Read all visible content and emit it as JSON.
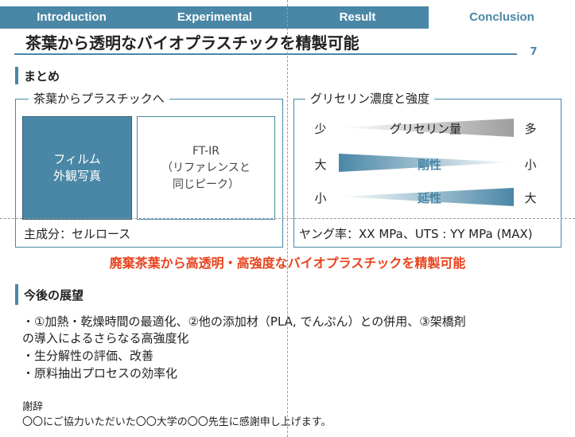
{
  "tabs": [
    "Introduction",
    "Experimental",
    "Result",
    "Conclusion"
  ],
  "slide": {
    "title": "茶葉から透明なバイオプラスチックを精製可能",
    "page_number": "7"
  },
  "summary": {
    "heading": "まとめ",
    "left_box": {
      "title": "茶葉からプラスチックへ",
      "photo_label": "フィルム\n外観写真",
      "ftir_label": "FT-IR\n（リファレンスと\n同じピーク）",
      "footer": "主成分：セルロース"
    },
    "right_box": {
      "title": "グリセリン濃度と強度",
      "rows": [
        {
          "left": "少",
          "label": "グリセリン量",
          "right": "多"
        },
        {
          "left": "大",
          "label": "剛性",
          "right": "小"
        },
        {
          "left": "小",
          "label": "延性",
          "right": "大"
        }
      ],
      "footer": "ヤング率：XX MPa、UTS : YY MPa (MAX)"
    },
    "highlight": "廃棄茶葉から高透明・高強度なバイオプラスチックを精製可能"
  },
  "future": {
    "heading": "今後の展望",
    "items": [
      "・①加熱・乾燥時間の最適化、②他の添加材（PLA, でんぷん）との併用、③架橋剤",
      "の導入によるさらなる高強度化",
      "・生分解性の評価、改善",
      "・原料抽出プロセスの効率化"
    ]
  },
  "acknowledgement": {
    "heading": "謝辞",
    "text": "〇〇にご協力いただいた〇〇大学の〇〇先生に感謝申し上げます。"
  },
  "colors": {
    "accent": "#4a87a6",
    "highlight": "#e8421c",
    "gray": "#a6a6a6"
  }
}
